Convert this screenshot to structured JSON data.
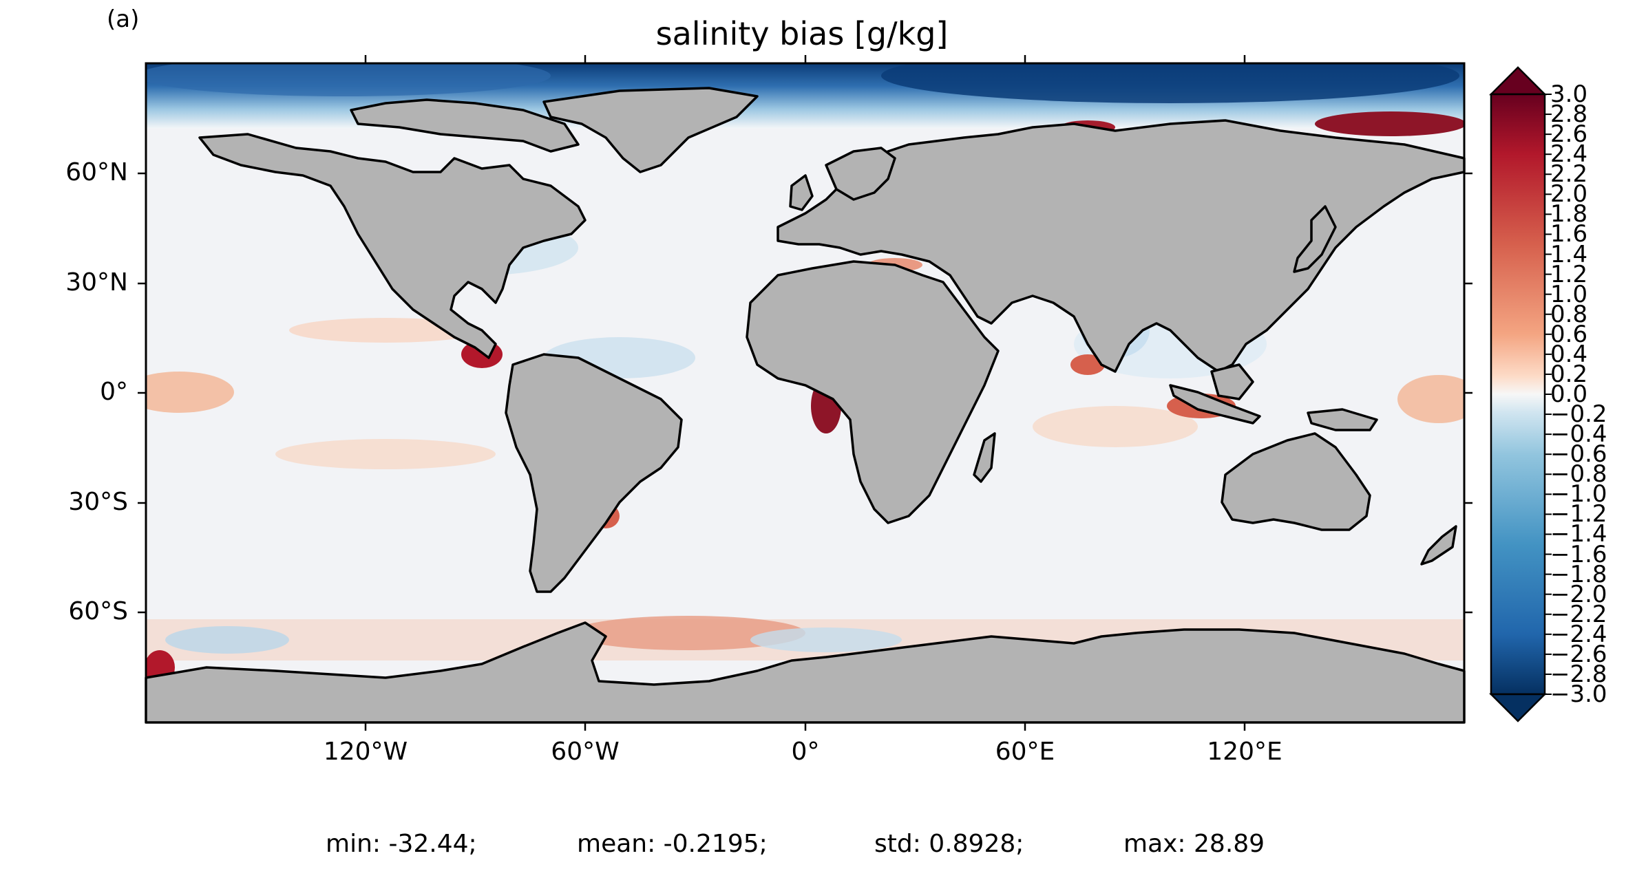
{
  "panel_label": "(a)",
  "title": "salinity bias [g/kg]",
  "lat_ticks": [
    "60°N",
    "30°N",
    "0°",
    "30°S",
    "60°S"
  ],
  "lon_ticks": [
    "120°W",
    "60°W",
    "0°",
    "60°E",
    "120°E"
  ],
  "colorbar": {
    "min": -3.0,
    "max": 3.0,
    "extend": "both",
    "colormap": "RdBu_r",
    "tick_labels": [
      "3.0",
      "2.8",
      "2.6",
      "2.4",
      "2.2",
      "2.0",
      "1.8",
      "1.6",
      "1.4",
      "1.2",
      "1.0",
      "0.8",
      "0.6",
      "0.4",
      "0.2",
      "0.0",
      "−0.2",
      "−0.4",
      "−0.6",
      "−0.8",
      "−1.0",
      "−1.2",
      "−1.4",
      "−1.6",
      "−1.8",
      "−2.0",
      "−2.2",
      "−2.4",
      "−2.6",
      "−2.8",
      "−3.0"
    ]
  },
  "land_color": "#b3b3b3",
  "stats": {
    "min": "min: -32.44;",
    "mean": "mean: -0.2195;",
    "std": "std: 0.8928;",
    "max": "max: 28.89"
  }
}
